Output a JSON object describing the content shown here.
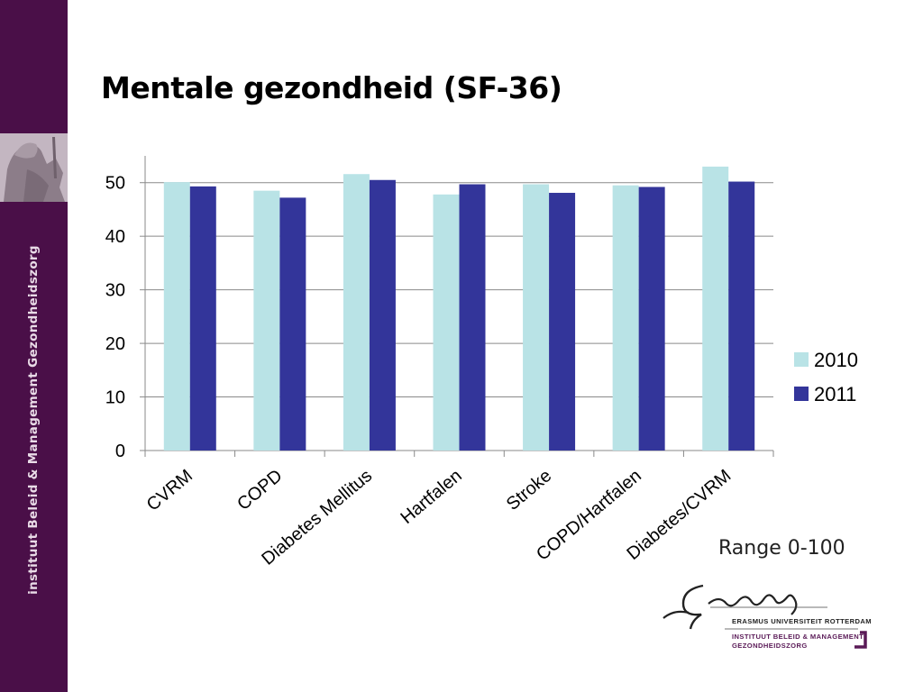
{
  "slide": {
    "title": "Mentale gezondheid (SF-36)",
    "sidebar_text": "instituut Beleid & Management Gezondheidszorg",
    "note": "Range 0-100"
  },
  "logo": {
    "university": "ERASMUS UNIVERSITEIT ROTTERDAM",
    "institute_line1": "INSTITUUT BELEID & MANAGEMENT",
    "institute_line2": "GEZONDHEIDSZORG"
  },
  "colors": {
    "sidebar": "#4a0f48",
    "series_2010": "#b9e3e6",
    "series_2011": "#33359a"
  },
  "chart_data": {
    "type": "bar",
    "title": "",
    "xlabel": "",
    "ylabel": "",
    "ylim": [
      0,
      55
    ],
    "yticks": [
      0,
      10,
      20,
      30,
      40,
      50
    ],
    "grid": true,
    "legend": "right",
    "categories": [
      "CVRM",
      "COPD",
      "Diabetes Mellitus",
      "Hartfalen",
      "Stroke",
      "COPD/Hartfalen",
      "Diabetes/CVRM"
    ],
    "series": [
      {
        "name": "2010",
        "color": "#b9e3e6",
        "values": [
          50.1,
          48.5,
          51.6,
          47.8,
          49.7,
          49.5,
          53.0
        ]
      },
      {
        "name": "2011",
        "color": "#33359a",
        "values": [
          49.3,
          47.2,
          50.5,
          49.7,
          48.1,
          49.2,
          50.2
        ]
      }
    ]
  }
}
